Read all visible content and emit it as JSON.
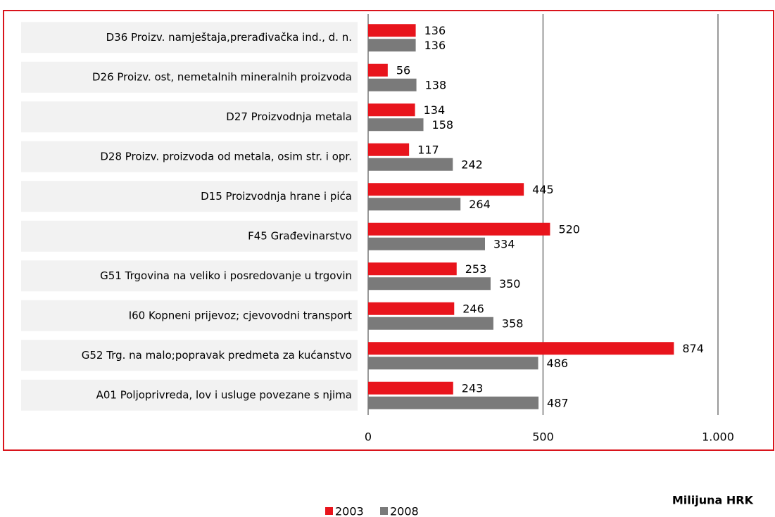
{
  "chart_data": {
    "type": "hbar",
    "categories": [
      "D36 Proizv. namještaja,prerađivačka ind., d. n.",
      "D26 Proizv. ost, nemetalnih mineralnih proizvoda",
      "D27 Proizvodnja metala",
      "D28 Proizv. proizvoda od metala, osim str. i opr.",
      "D15 Proizvodnja hrane i pića",
      "F45 Građevinarstvo",
      "G51  Trgovina na veliko i posredovanje u trgovin",
      "I60 Kopneni prijevoz; cjevovodni transport",
      "G52 Trg. na malo;popravak predmeta za kućanstvo",
      "A01 Poljoprivreda, lov i usluge povezane s njima"
    ],
    "series": [
      {
        "name": "2003",
        "color": "#e8141c",
        "values": [
          136,
          56,
          134,
          117,
          445,
          520,
          253,
          246,
          874,
          243
        ]
      },
      {
        "name": "2008",
        "color": "#7a7a7a",
        "values": [
          136,
          138,
          158,
          242,
          264,
          334,
          350,
          358,
          486,
          487
        ]
      }
    ],
    "xlim": [
      0,
      1000
    ],
    "xticks": [
      0,
      500,
      {
        "value": 1000,
        "label": "1.000"
      }
    ],
    "x_label": "Milijuna HRK",
    "grid": true,
    "legend": "bottom"
  }
}
